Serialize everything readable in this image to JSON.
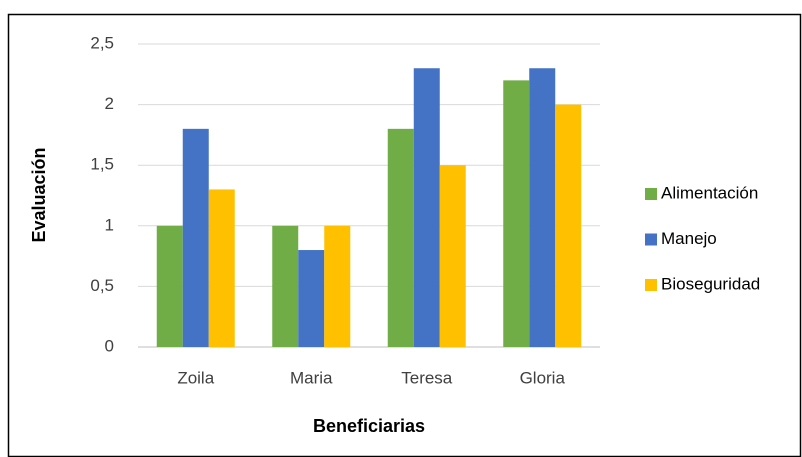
{
  "chart_data": {
    "type": "bar",
    "x_label": "Beneficiarias",
    "y_label": "Evaluación",
    "categories": [
      "Zoila",
      "Maria",
      "Teresa",
      "Gloria"
    ],
    "series": [
      {
        "name": "Alimentación",
        "color": "#70ad47",
        "values": [
          1,
          1,
          1.8,
          2.2
        ]
      },
      {
        "name": "Manejo",
        "color": "#4472c4",
        "values": [
          1.8,
          0.8,
          2.3,
          2.3
        ]
      },
      {
        "name": "Bioseguridad",
        "color": "#ffc000",
        "values": [
          1.3,
          1,
          1.5,
          2
        ]
      }
    ],
    "ylim": [
      0,
      2.5
    ],
    "yticks": [
      0,
      {
        "value": 0.5,
        "label": "0,5"
      },
      1,
      {
        "value": 1.5,
        "label": "1,5"
      },
      2,
      {
        "value": 2.5,
        "label": "2,5"
      }
    ],
    "grid": true,
    "legend": "right"
  }
}
